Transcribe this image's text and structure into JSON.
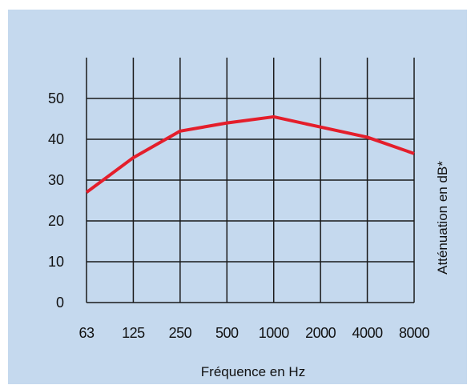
{
  "chart_data": {
    "type": "line",
    "categories": [
      "63",
      "125",
      "250",
      "500",
      "1000",
      "2000",
      "4000",
      "8000"
    ],
    "series": [
      {
        "values": [
          27,
          35.5,
          42,
          44,
          45.5,
          43,
          40.5,
          36.5
        ]
      }
    ],
    "yticks": [
      "0",
      "10",
      "20",
      "30",
      "40",
      "50"
    ],
    "ylim": [
      0,
      50
    ],
    "xlabel": "Fréquence en Hz",
    "ylabel": "Atténuation en dB*",
    "grid": true,
    "line_color": "#e41e2b",
    "background_color": "#c5d9ee"
  }
}
